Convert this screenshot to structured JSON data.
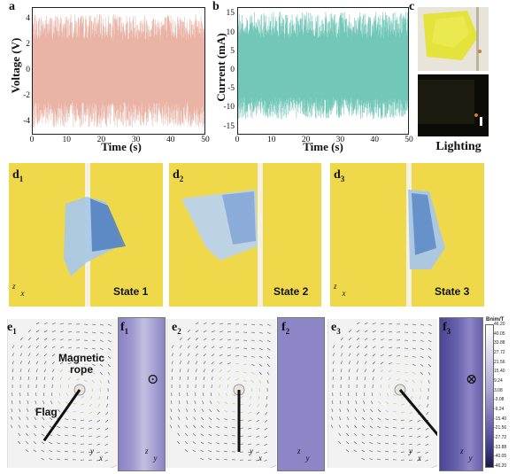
{
  "panels": {
    "a": {
      "letter": "a",
      "ylabel": "Voltage (V)",
      "xlabel": "Time (s)",
      "yticks": [
        "4",
        "2",
        "0",
        "-2",
        "-4"
      ],
      "xticks": [
        "0",
        "10",
        "20",
        "30",
        "40",
        "50"
      ],
      "color": "#e9b3a6"
    },
    "b": {
      "letter": "b",
      "ylabel": "Current (mA)",
      "xlabel": "Time (s)",
      "yticks": [
        "15",
        "10",
        "5",
        "0",
        "-5",
        "-10",
        "-15"
      ],
      "xticks": [
        "0",
        "10",
        "20",
        "30",
        "40",
        "50"
      ],
      "color": "#72c7b8"
    },
    "c": {
      "letter": "c",
      "caption": "Lighting"
    },
    "d": [
      {
        "letter": "d",
        "sub": "1",
        "state": "State 1"
      },
      {
        "letter": "d",
        "sub": "2",
        "state": "State 2"
      },
      {
        "letter": "d",
        "sub": "3",
        "state": "State 3"
      }
    ],
    "e": [
      {
        "letter": "e",
        "sub": "1",
        "magnetic": "Magnetic",
        "rope": "rope",
        "flag": "Flag"
      },
      {
        "letter": "e",
        "sub": "2"
      },
      {
        "letter": "e",
        "sub": "3"
      }
    ],
    "f": [
      {
        "letter": "f",
        "sub": "1",
        "symbol": "⊙"
      },
      {
        "letter": "f",
        "sub": "2"
      },
      {
        "letter": "f",
        "sub": "3",
        "symbol": "⊗"
      }
    ],
    "axes": {
      "y": "y",
      "x": "x",
      "z": "z"
    },
    "colorbar": {
      "title": "Bnim/T",
      "labels": [
        "46.20",
        "40.05",
        "33.88",
        "27.72",
        "21.56",
        "15.40",
        "9.24",
        "3.08",
        "-3.08",
        "-9.24",
        "-15.40",
        "-21.56",
        "-27.72",
        "-33.88",
        "-40.05",
        "-46.20"
      ]
    }
  },
  "chart_data": [
    {
      "type": "line",
      "xlabel": "Time (s)",
      "ylabel": "Voltage (V)",
      "xlim": [
        0,
        50
      ],
      "ylim": [
        -5,
        5
      ],
      "series": [
        {
          "name": "",
          "approx_envelope": [
            -4.5,
            4.5
          ]
        }
      ]
    },
    {
      "type": "line",
      "xlabel": "Time (s)",
      "ylabel": "Current (mA)",
      "xlim": [
        0,
        50
      ],
      "ylim": [
        -17,
        17
      ],
      "series": [
        {
          "name": "",
          "approx_envelope": [
            -13,
            16
          ]
        }
      ]
    }
  ]
}
